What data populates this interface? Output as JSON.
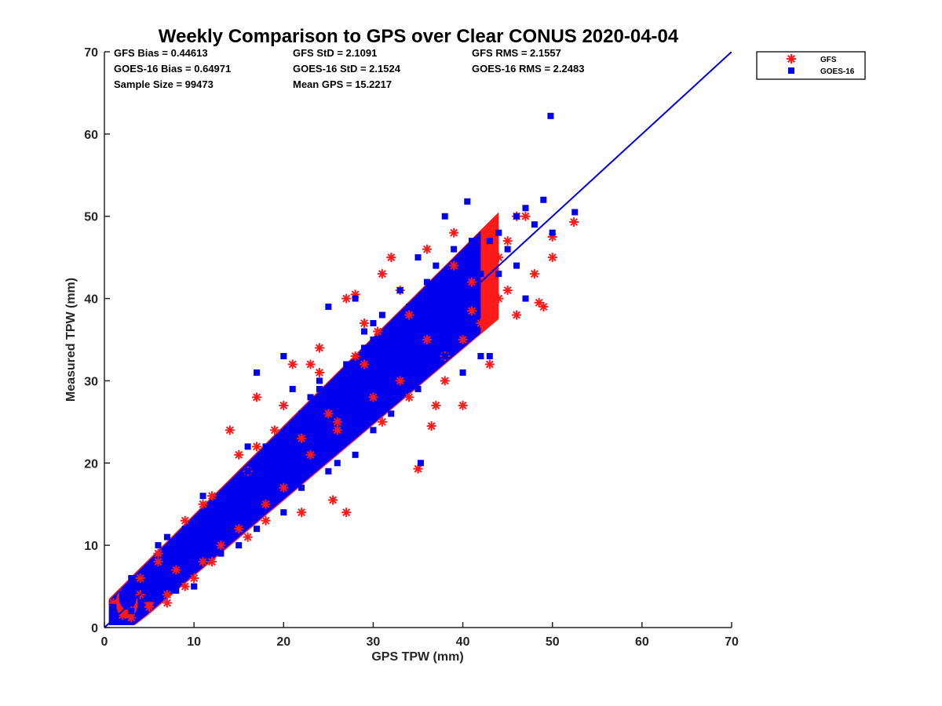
{
  "chart_data": {
    "type": "scatter",
    "title": "Weekly Comparison to GPS over Clear CONUS 2020-04-04",
    "xlabel": "GPS TPW (mm)",
    "ylabel": "Measured TPW (mm)",
    "xlim": [
      0,
      70
    ],
    "ylim": [
      0,
      70
    ],
    "x_ticks": [
      "0",
      "10",
      "20",
      "30",
      "40",
      "50",
      "60",
      "70"
    ],
    "y_ticks": [
      "0",
      "10",
      "20",
      "30",
      "40",
      "50",
      "60",
      "70"
    ],
    "grid": false,
    "legend_position": "outside-top-right",
    "stats": [
      "GFS Bias = 0.44613",
      "GFS StD = 2.1091",
      "GFS RMS = 2.1557",
      "GOES-16 Bias = 0.64971",
      "GOES-16 StD = 2.1524",
      "GOES-16 RMS = 2.2483",
      "Sample Size = 99473",
      "Mean GPS = 15.2217"
    ],
    "reference_line": {
      "from": [
        0,
        0
      ],
      "to": [
        70,
        70
      ],
      "color": "#0000ee"
    },
    "series": [
      {
        "name": "GFS",
        "marker": "asterisk",
        "color": "#ff1a1a",
        "points": [
          [
            1,
            3
          ],
          [
            2,
            1.5
          ],
          [
            3,
            2
          ],
          [
            4,
            4
          ],
          [
            5,
            3
          ],
          [
            6,
            8
          ],
          [
            7,
            4
          ],
          [
            8,
            7
          ],
          [
            9,
            13
          ],
          [
            10,
            6
          ],
          [
            11,
            8
          ],
          [
            12,
            16
          ],
          [
            13,
            10
          ],
          [
            14,
            24
          ],
          [
            15,
            12
          ],
          [
            16,
            19
          ],
          [
            17,
            28
          ],
          [
            18,
            15
          ],
          [
            19,
            24
          ],
          [
            20,
            17
          ],
          [
            21,
            32
          ],
          [
            22,
            23
          ],
          [
            23,
            32
          ],
          [
            24,
            34
          ],
          [
            25,
            26
          ],
          [
            26,
            25
          ],
          [
            27,
            40
          ],
          [
            28,
            33
          ],
          [
            29,
            32
          ],
          [
            30,
            28
          ],
          [
            31,
            43
          ],
          [
            32,
            45
          ],
          [
            33,
            30
          ],
          [
            34,
            38
          ],
          [
            35,
            19.3
          ],
          [
            36,
            46
          ],
          [
            37,
            27
          ],
          [
            38,
            30
          ],
          [
            39,
            48
          ],
          [
            40,
            35
          ],
          [
            41,
            42
          ],
          [
            42,
            37
          ],
          [
            43,
            32
          ],
          [
            44,
            45
          ],
          [
            45,
            41
          ],
          [
            46,
            38
          ],
          [
            47,
            50
          ],
          [
            48,
            43
          ],
          [
            49,
            39
          ],
          [
            50,
            45
          ],
          [
            52.4,
            49.3
          ],
          [
            30.5,
            36
          ],
          [
            28,
            40.5
          ],
          [
            36.5,
            24.5
          ],
          [
            25.5,
            15.5
          ],
          [
            27,
            14
          ],
          [
            41,
            38.5
          ],
          [
            48.5,
            39.5
          ],
          [
            46,
            50
          ],
          [
            50,
            47.5
          ],
          [
            23,
            21
          ],
          [
            26,
            24
          ],
          [
            34,
            28
          ],
          [
            38,
            33
          ],
          [
            18,
            13
          ],
          [
            12,
            8
          ],
          [
            16,
            11
          ],
          [
            9,
            5
          ],
          [
            7,
            3
          ],
          [
            5,
            2.5
          ],
          [
            3,
            1.2
          ],
          [
            15,
            21
          ],
          [
            20,
            27
          ],
          [
            24,
            31
          ],
          [
            29,
            37
          ],
          [
            33,
            41
          ],
          [
            43,
            48
          ],
          [
            22,
            14
          ],
          [
            17,
            22
          ],
          [
            11,
            15
          ],
          [
            6,
            9
          ],
          [
            4,
            6
          ],
          [
            39,
            44
          ],
          [
            44,
            40
          ],
          [
            40,
            27
          ],
          [
            31,
            25
          ],
          [
            36,
            35
          ],
          [
            45,
            47
          ]
        ]
      },
      {
        "name": "GOES-16",
        "marker": "square",
        "color": "#0000ee",
        "points": [
          [
            1,
            2.5
          ],
          [
            2,
            4
          ],
          [
            3,
            6
          ],
          [
            4,
            5
          ],
          [
            5,
            7
          ],
          [
            6,
            10
          ],
          [
            7,
            6
          ],
          [
            8,
            10
          ],
          [
            9,
            12
          ],
          [
            10,
            11
          ],
          [
            11,
            14
          ],
          [
            12,
            13
          ],
          [
            13,
            16
          ],
          [
            14,
            15
          ],
          [
            15,
            18
          ],
          [
            16,
            19
          ],
          [
            17,
            31
          ],
          [
            18,
            20
          ],
          [
            19,
            22
          ],
          [
            20,
            33
          ],
          [
            21,
            24
          ],
          [
            22,
            26
          ],
          [
            23,
            28
          ],
          [
            24,
            29
          ],
          [
            25,
            39
          ],
          [
            26,
            30
          ],
          [
            27,
            32
          ],
          [
            28,
            40
          ],
          [
            29,
            34
          ],
          [
            30,
            35
          ],
          [
            31,
            38
          ],
          [
            32,
            36
          ],
          [
            33,
            41
          ],
          [
            34,
            39
          ],
          [
            35,
            45
          ],
          [
            36,
            42
          ],
          [
            37,
            44
          ],
          [
            38,
            50
          ],
          [
            39,
            46
          ],
          [
            40,
            45
          ],
          [
            41,
            47
          ],
          [
            42,
            43
          ],
          [
            43,
            47
          ],
          [
            44,
            48
          ],
          [
            45,
            46
          ],
          [
            46,
            50
          ],
          [
            47,
            51
          ],
          [
            48,
            49
          ],
          [
            49,
            52
          ],
          [
            50,
            48
          ],
          [
            49.8,
            62.2
          ],
          [
            40.5,
            51.8
          ],
          [
            52.5,
            50.5
          ],
          [
            35.3,
            20
          ],
          [
            10,
            5
          ],
          [
            15,
            10
          ],
          [
            20,
            14
          ],
          [
            25,
            19
          ],
          [
            30,
            24
          ],
          [
            35,
            29
          ],
          [
            40,
            31
          ],
          [
            42,
            33
          ],
          [
            32,
            26
          ],
          [
            28,
            21
          ],
          [
            22,
            17
          ],
          [
            17,
            12
          ],
          [
            13,
            9
          ],
          [
            8,
            4.5
          ],
          [
            5,
            3.5
          ],
          [
            3,
            2
          ],
          [
            12,
            15
          ],
          [
            18,
            22
          ],
          [
            24,
            30
          ],
          [
            30,
            37
          ],
          [
            36,
            41
          ],
          [
            44,
            43
          ],
          [
            38,
            33
          ],
          [
            46,
            44
          ],
          [
            26,
            20
          ],
          [
            33,
            29
          ],
          [
            47,
            40
          ],
          [
            43,
            33
          ],
          [
            21,
            29
          ],
          [
            16,
            22
          ],
          [
            11,
            16
          ],
          [
            7,
            11
          ],
          [
            29,
            36
          ],
          [
            39,
            37
          ]
        ]
      }
    ]
  }
}
